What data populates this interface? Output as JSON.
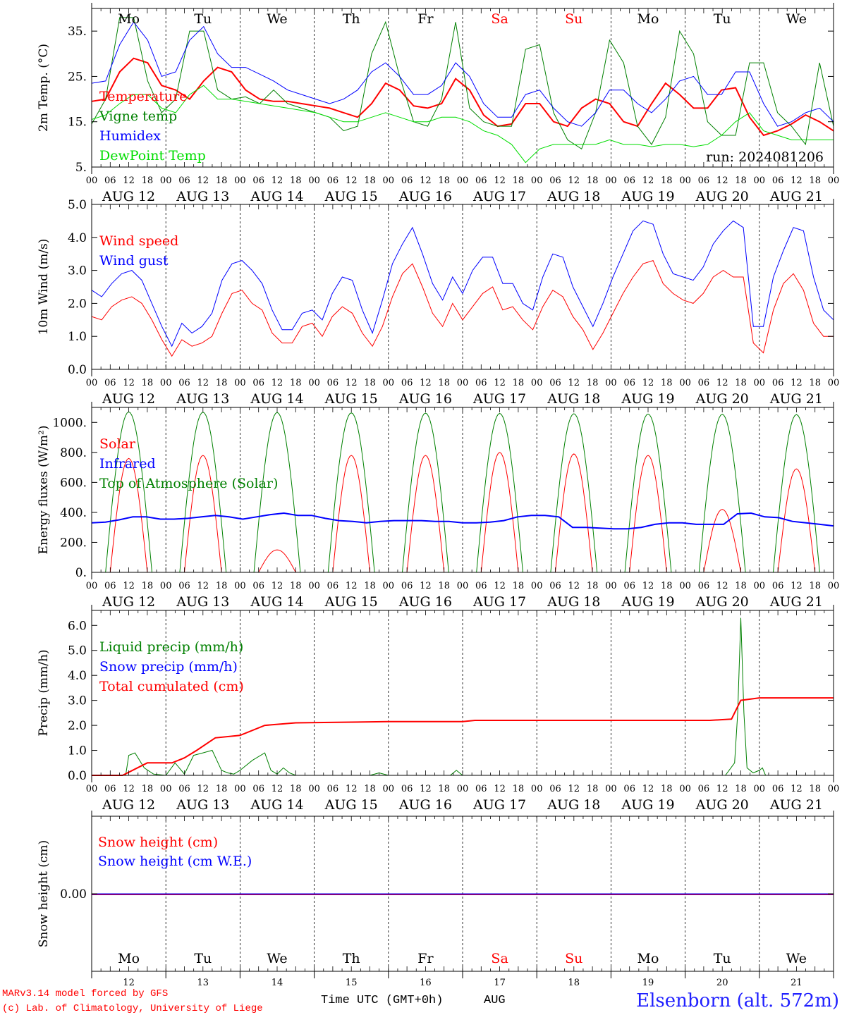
{
  "colors": {
    "red": "#ff0000",
    "blue": "#0000ff",
    "green": "#008000",
    "lightgreen": "#00dd00",
    "purple": "#800080",
    "weekend": "#ff0000"
  },
  "days": [
    {
      "wd": "Mo",
      "date": "AUG 12",
      "num": "12",
      "weekend": false
    },
    {
      "wd": "Tu",
      "date": "AUG 13",
      "num": "13",
      "weekend": false
    },
    {
      "wd": "We",
      "date": "AUG 14",
      "num": "14",
      "weekend": false
    },
    {
      "wd": "Th",
      "date": "AUG 15",
      "num": "15",
      "weekend": false
    },
    {
      "wd": "Fr",
      "date": "AUG 16",
      "num": "16",
      "weekend": false
    },
    {
      "wd": "Sa",
      "date": "AUG 17",
      "num": "17",
      "weekend": true
    },
    {
      "wd": "Su",
      "date": "AUG 18",
      "num": "18",
      "weekend": true
    },
    {
      "wd": "Mo",
      "date": "AUG 19",
      "num": "19",
      "weekend": false
    },
    {
      "wd": "Tu",
      "date": "AUG 20",
      "num": "20",
      "weekend": false
    },
    {
      "wd": "We",
      "date": "AUG 21",
      "num": "21",
      "weekend": false
    }
  ],
  "hour_ticks": [
    "00",
    "06",
    "12",
    "18"
  ],
  "end_tick": "00",
  "run_label": "run: 2024081206",
  "footer": {
    "model": "MARv3.14 model forced by GFS",
    "credit": "(c) Lab. of Climatology, University of Liege",
    "xlabel": "Time UTC (GMT+0h)",
    "month": "AUG",
    "station": "Elsenborn (alt. 572m)"
  },
  "chart_data": [
    {
      "id": "temp",
      "type": "line",
      "ylabel": "2m Temp. (°C)",
      "ylim": [
        5,
        40
      ],
      "yticks": [
        5,
        15,
        25,
        35
      ],
      "ytick_labels": [
        "5.",
        "15.",
        "25.",
        "35."
      ],
      "series": [
        {
          "name": "Temperature",
          "color": "red",
          "width": 2,
          "values": [
            19.5,
            20,
            26,
            29,
            28,
            23,
            22,
            20,
            24,
            27,
            26,
            22,
            20,
            19.5,
            19.5,
            19,
            18.5,
            18,
            17,
            16,
            19,
            23.5,
            22,
            18.5,
            18,
            19,
            24.5,
            22,
            16.5,
            14,
            14.5,
            19,
            19,
            15,
            14,
            18,
            20,
            19,
            15,
            14,
            19,
            23.5,
            21,
            18,
            18,
            22,
            22.5,
            16,
            12,
            13,
            14.5,
            16.5,
            15,
            13
          ]
        },
        {
          "name": "Vigne temp",
          "color": "green",
          "width": 1,
          "values": [
            14.5,
            20,
            38,
            38,
            24,
            17,
            20,
            35,
            35,
            22,
            20,
            20.5,
            19,
            22,
            19,
            18,
            17,
            16,
            13,
            14,
            30,
            37,
            25,
            15,
            14,
            20,
            37,
            18,
            15,
            14,
            14,
            31,
            32,
            17,
            11,
            9,
            17,
            33,
            28,
            14,
            10,
            16,
            35,
            30,
            15,
            12,
            12,
            28,
            28,
            17,
            14,
            10,
            28,
            14
          ]
        },
        {
          "name": "Humidex",
          "color": "blue",
          "width": 1,
          "values": [
            23.5,
            24,
            32,
            37,
            33,
            25,
            26,
            33,
            36,
            30,
            27,
            27,
            25.5,
            24,
            22,
            21,
            20,
            19,
            20,
            22,
            26,
            28,
            25,
            21,
            21,
            23,
            28,
            25,
            19,
            16,
            16,
            21,
            22,
            18,
            15,
            14,
            17,
            22,
            22,
            19,
            17,
            20,
            24,
            25,
            21,
            21,
            26,
            26,
            19,
            14,
            15,
            17,
            18,
            15
          ]
        },
        {
          "name": "DewPoint Temp",
          "color": "lightgreen",
          "width": 1,
          "values": [
            15.5,
            16.5,
            19,
            21,
            21,
            18,
            17,
            21,
            23,
            20,
            20,
            19.5,
            19,
            18.5,
            18,
            17.5,
            17,
            16,
            15,
            15,
            16,
            17,
            16,
            15,
            15,
            16,
            16,
            15,
            13,
            12,
            10,
            6,
            9,
            10,
            10,
            10,
            10,
            11,
            10,
            10,
            9.5,
            10,
            10,
            9.5,
            10,
            12,
            15,
            17,
            13,
            12,
            11,
            11,
            11,
            11
          ]
        }
      ]
    },
    {
      "id": "wind",
      "type": "line",
      "ylabel": "10m Wind (m/s)",
      "ylim": [
        0,
        5
      ],
      "yticks": [
        0,
        1,
        2,
        3,
        4,
        5
      ],
      "ytick_labels": [
        "0.0",
        "1.0",
        "2.0",
        "3.0",
        "4.0",
        "5.0"
      ],
      "series": [
        {
          "name": "Wind speed",
          "color": "red",
          "width": 1,
          "values": [
            1.6,
            1.5,
            1.9,
            2.1,
            2.2,
            2.0,
            1.5,
            0.9,
            0.4,
            0.9,
            0.7,
            0.8,
            1.0,
            1.7,
            2.3,
            2.4,
            2.0,
            1.8,
            1.1,
            0.8,
            0.8,
            1.3,
            1.4,
            1.0,
            1.6,
            1.9,
            1.7,
            1.1,
            0.7,
            1.3,
            2.2,
            2.9,
            3.2,
            2.5,
            1.7,
            1.3,
            2.0,
            1.5,
            1.9,
            2.3,
            2.5,
            1.8,
            1.9,
            1.5,
            1.2,
            1.9,
            2.4,
            2.2,
            1.6,
            1.2,
            0.6,
            1.1,
            1.7,
            2.3,
            2.8,
            3.2,
            3.3,
            2.6,
            2.3,
            2.1,
            2.0,
            2.3,
            2.8,
            3.0,
            2.8,
            2.8,
            0.8,
            0.5,
            1.8,
            2.6,
            2.9,
            2.4,
            1.4,
            1.0,
            1.0
          ]
        },
        {
          "name": "Wind gust",
          "color": "blue",
          "width": 1,
          "values": [
            2.4,
            2.2,
            2.6,
            2.9,
            3.0,
            2.7,
            2.0,
            1.3,
            0.7,
            1.4,
            1.1,
            1.3,
            1.7,
            2.7,
            3.2,
            3.3,
            3.0,
            2.6,
            1.8,
            1.2,
            1.2,
            1.7,
            1.8,
            1.5,
            2.3,
            2.8,
            2.7,
            1.8,
            1.1,
            2.1,
            3.2,
            3.8,
            4.3,
            3.5,
            2.6,
            2.1,
            2.8,
            2.3,
            3.0,
            3.4,
            3.4,
            2.6,
            2.6,
            2.0,
            1.8,
            2.8,
            3.5,
            3.4,
            2.5,
            1.9,
            1.3,
            2.0,
            2.8,
            3.5,
            4.2,
            4.5,
            4.4,
            3.5,
            2.9,
            2.8,
            2.7,
            3.1,
            3.8,
            4.2,
            4.5,
            4.3,
            1.3,
            1.3,
            2.8,
            3.6,
            4.3,
            4.2,
            2.8,
            1.8,
            1.5
          ]
        }
      ]
    },
    {
      "id": "energy",
      "type": "line",
      "ylabel": "Energy fluxes (W/m²)",
      "ylim": [
        0,
        1100
      ],
      "yticks": [
        0,
        200,
        400,
        600,
        800,
        1000
      ],
      "ytick_labels": [
        "0.",
        "200.",
        "400.",
        "600.",
        "800.",
        "1000."
      ],
      "series": [
        {
          "name": "Top of Atmosphere (Solar)",
          "color": "green",
          "width": 1,
          "type": "diurnal",
          "peaks": [
            1070,
            1068,
            1066,
            1064,
            1062,
            1060,
            1058,
            1056,
            1054,
            1052
          ],
          "rise": 4.5,
          "set": 19.5
        },
        {
          "name": "Solar",
          "color": "red",
          "width": 1,
          "type": "diurnal",
          "peaks": [
            760,
            780,
            150,
            780,
            780,
            800,
            790,
            780,
            420,
            690
          ],
          "rise": 6,
          "set": 18
        },
        {
          "name": "Infrared",
          "color": "blue",
          "width": 2,
          "values": [
            330,
            335,
            350,
            370,
            370,
            355,
            355,
            360,
            370,
            380,
            370,
            355,
            370,
            385,
            395,
            380,
            380,
            360,
            345,
            340,
            330,
            340,
            345,
            345,
            345,
            340,
            340,
            330,
            330,
            335,
            345,
            370,
            380,
            380,
            370,
            300,
            300,
            295,
            290,
            290,
            300,
            320,
            330,
            330,
            320,
            320,
            320,
            390,
            395,
            370,
            365,
            340,
            330,
            320,
            310
          ]
        }
      ]
    },
    {
      "id": "precip",
      "type": "line",
      "ylabel": "Precip (mm/h)",
      "ylim": [
        0,
        6.6
      ],
      "yticks": [
        0,
        1,
        2,
        3,
        4,
        5,
        6
      ],
      "ytick_labels": [
        "0.0",
        "1.0",
        "2.0",
        "3.0",
        "4.0",
        "5.0",
        "6.0"
      ],
      "series": [
        {
          "name": "Liquid precip (mm/h)",
          "color": "green",
          "width": 1,
          "points": [
            [
              0,
              0
            ],
            [
              11,
              0
            ],
            [
              12,
              0.8
            ],
            [
              14,
              0.9
            ],
            [
              17,
              0.3
            ],
            [
              20,
              0.05
            ],
            [
              24,
              0
            ],
            [
              27,
              0.5
            ],
            [
              30,
              0.05
            ],
            [
              33,
              0.8
            ],
            [
              36,
              0.9
            ],
            [
              39,
              1.0
            ],
            [
              42,
              0.2
            ],
            [
              44,
              0.1
            ],
            [
              46,
              0.05
            ],
            [
              48,
              0.2
            ],
            [
              52,
              0.6
            ],
            [
              56,
              0.9
            ],
            [
              58,
              0.2
            ],
            [
              60,
              0.05
            ],
            [
              62,
              0.3
            ],
            [
              64,
              0.1
            ],
            [
              66,
              0
            ],
            [
              90,
              0
            ],
            [
              93,
              0.1
            ],
            [
              96,
              0
            ],
            [
              116,
              0
            ],
            [
              118,
              0.2
            ],
            [
              120,
              0
            ],
            [
              192,
              0
            ],
            [
              205,
              0
            ],
            [
              208,
              0.5
            ],
            [
              209,
              2.5
            ],
            [
              210,
              6.3
            ],
            [
              211,
              2.5
            ],
            [
              212,
              0.3
            ],
            [
              214,
              0.1
            ],
            [
              216,
              0.2
            ],
            [
              217,
              0.3
            ],
            [
              218,
              0
            ],
            [
              240,
              0
            ]
          ]
        },
        {
          "name": "Snow precip (mm/h)",
          "color": "blue",
          "width": 1,
          "points": [
            [
              0,
              0
            ],
            [
              240,
              0
            ]
          ]
        },
        {
          "name": "Total cumulated (cm)",
          "color": "red",
          "width": 2,
          "points": [
            [
              0,
              0
            ],
            [
              10,
              0
            ],
            [
              18,
              0.5
            ],
            [
              26,
              0.5
            ],
            [
              30,
              0.7
            ],
            [
              34,
              1.0
            ],
            [
              40,
              1.5
            ],
            [
              48,
              1.6
            ],
            [
              56,
              2.0
            ],
            [
              66,
              2.1
            ],
            [
              96,
              2.15
            ],
            [
              120,
              2.15
            ],
            [
              124,
              2.2
            ],
            [
              200,
              2.2
            ],
            [
              207,
              2.25
            ],
            [
              210,
              3.0
            ],
            [
              216,
              3.1
            ],
            [
              240,
              3.1
            ]
          ]
        }
      ]
    },
    {
      "id": "snow",
      "type": "line",
      "ylabel": "Snow height (cm)",
      "ylim": [
        -1,
        1
      ],
      "yticks": [
        0
      ],
      "ytick_labels": [
        "0.00"
      ],
      "series": [
        {
          "name": "Snow height (cm)",
          "color": "red",
          "width": 1,
          "points": [
            [
              0,
              0
            ],
            [
              240,
              0
            ]
          ]
        },
        {
          "name": "Snow height (cm W.E.)",
          "color": "blue",
          "width": 1,
          "points": [
            [
              0,
              0
            ],
            [
              240,
              0
            ]
          ]
        }
      ]
    }
  ]
}
